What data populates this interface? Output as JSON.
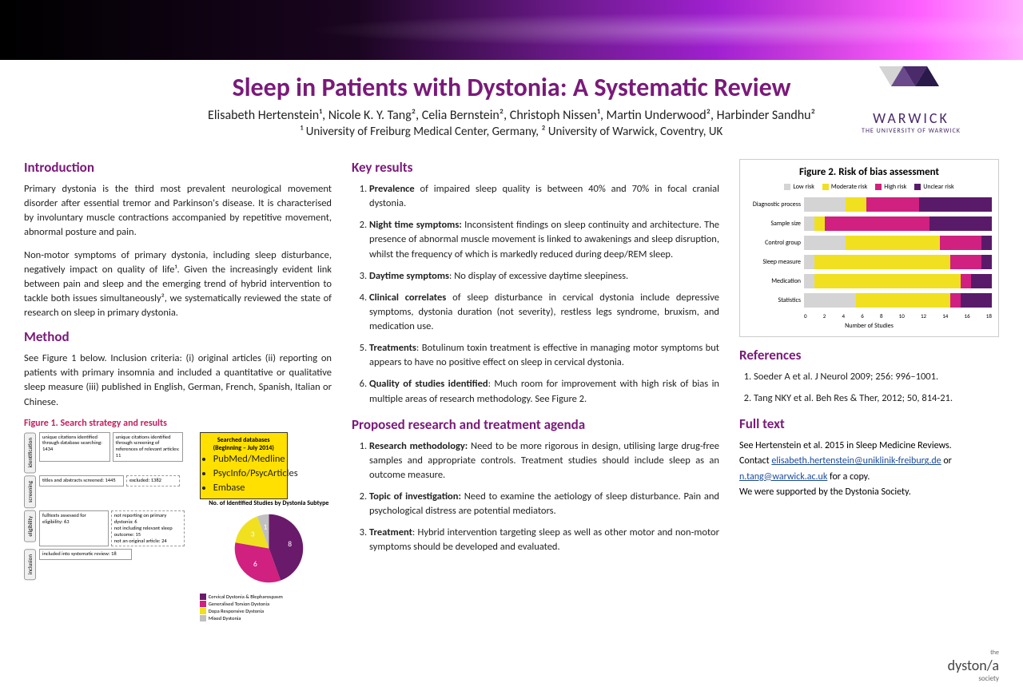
{
  "title": "Sleep in Patients with Dystonia: A Systematic Review",
  "authors": "Elisabeth Hertenstein¹, Nicole K. Y. Tang², Celia Bernstein², Christoph Nissen¹, Martin Underwood², Harbinder Sandhu²",
  "affiliations": "¹ University of Freiburg Medical Center, Germany, ² University of Warwick, Coventry, UK",
  "warwick": {
    "name": "WARWICK",
    "sub": "THE UNIVERSITY OF WARWICK"
  },
  "intro": {
    "h": "Introduction",
    "p1": "Primary dystonia is the third most prevalent neurological movement disorder after essential tremor and Parkinson's disease. It is characterised by involuntary muscle contractions accompanied by repetitive movement, abnormal posture and pain.",
    "p2": "Non-motor symptoms of primary dystonia, including sleep disturbance, negatively impact on quality of life¹. Given the increasingly evident link between pain and sleep and the emerging trend of hybrid intervention to tackle both issues simultaneously², we systematically reviewed the state of research on sleep in primary dystonia."
  },
  "method": {
    "h": "Method",
    "p": "See Figure 1 below. Inclusion criteria: (i) original articles (ii) reporting on patients with primary insomnia and included a quantitative or qualitative sleep measure (iii) published in English, German, French, Spanish, Italian or Chinese."
  },
  "fig1": {
    "title": "Figure 1. Search strategy and results",
    "stages": [
      "identification",
      "screening",
      "eligibility",
      "inclusion"
    ],
    "boxes": {
      "db1": "unique citations identified through database searching: 1434",
      "db2": "unique citations identified through screening of references of relevant articles: 11",
      "screen": "titles and abstracts screened: 1445",
      "excluded": "excluded: 1382",
      "fulltext": "fulltexts assessed for eligibility: 63",
      "notrep": "not reporting on primary dystonia: 6\nnot including relevant sleep outcome: 15\nnot an original article: 24",
      "included": "included into systematic review: 18"
    },
    "dbtitle": "Searched databases (Beginning – July 2014)",
    "dblist": [
      "PubMed/Medline",
      "PsycInfo/PsycArticles",
      "Embase"
    ],
    "pietitle": "No. of Identified Studies by Dystonia Subtype",
    "pie": [
      {
        "label": "Cervical Dystonia & Blepharospasm",
        "value": 8,
        "color": "#6a1a6a"
      },
      {
        "label": "Generalised Torsion Dystonia",
        "value": 6,
        "color": "#d02080"
      },
      {
        "label": "Dopa Responsive Dystonia",
        "value": 3,
        "color": "#f0e020"
      },
      {
        "label": "Mixed Dystonia",
        "value": 1,
        "color": "#c0c0c0"
      }
    ]
  },
  "keyresults": {
    "h": "Key results",
    "items": [
      {
        "b": "Prevalence",
        "t": " of impaired sleep quality is between 40% and 70% in focal cranial dystonia."
      },
      {
        "b": "Night time symptoms:",
        "t": " Inconsistent findings on sleep continuity and architecture. The presence of abnormal muscle movement is linked to awakenings and sleep disruption, whilst the frequency of which is markedly reduced during deep/REM sleep."
      },
      {
        "b": "Daytime symptoms",
        "t": ": No display of excessive daytime sleepiness."
      },
      {
        "b": "Clinical correlates",
        "t": " of sleep disturbance in cervical dystonia include depressive symptoms, dystonia duration (not severity), restless legs syndrome, bruxism, and medication use."
      },
      {
        "b": "Treatments",
        "t": ": Botulinum toxin treatment is effective in managing motor symptoms but appears to have no positive effect on sleep in cervical dystonia."
      },
      {
        "b": "Quality of studies identified",
        "t": ": Much room for improvement with high risk of bias in multiple areas of research methodology. See Figure 2."
      }
    ]
  },
  "agenda": {
    "h": "Proposed research and treatment agenda",
    "items": [
      {
        "b": "Research methodology:",
        "t": " Need to be more rigorous in design, utilising large drug-free samples and appropriate controls. Treatment studies should include sleep as an outcome measure."
      },
      {
        "b": "Topic of investigation:",
        "t": " Need to examine the aetiology of sleep disturbance. Pain and psychological distress are potential mediators."
      },
      {
        "b": "Treatment",
        "t": ": Hybrid intervention targeting sleep as well as other motor and non-motor symptoms should be developed and evaluated."
      }
    ]
  },
  "fig2": {
    "title": "Figure 2. Risk of bias assessment",
    "legend": [
      {
        "label": "Low risk",
        "color": "#d4d4d4"
      },
      {
        "label": "Moderate risk",
        "color": "#f0e020"
      },
      {
        "label": "High risk",
        "color": "#d02080"
      },
      {
        "label": "Unclear risk",
        "color": "#5a1a6a"
      }
    ],
    "max": 18,
    "rows": [
      {
        "label": "Diagnostic process",
        "seg": [
          4,
          2,
          5,
          7
        ]
      },
      {
        "label": "Sample size",
        "seg": [
          1,
          1,
          10,
          6
        ]
      },
      {
        "label": "Control group",
        "seg": [
          4,
          9,
          4,
          1
        ]
      },
      {
        "label": "Sleep measure",
        "seg": [
          1,
          13,
          3,
          1
        ]
      },
      {
        "label": "Medication",
        "seg": [
          1,
          14,
          1,
          2
        ]
      },
      {
        "label": "Statistics",
        "seg": [
          5,
          9,
          1,
          3
        ]
      }
    ],
    "ticks": [
      "0",
      "2",
      "4",
      "6",
      "8",
      "10",
      "12",
      "14",
      "16",
      "18"
    ],
    "xlabel": "Number of Studies"
  },
  "refs": {
    "h": "References",
    "items": [
      "Soeder A et al. J Neurol 2009; 256: 996–1001.",
      "Tang NKY et al. Beh Res & Ther, 2012; 50, 814-21."
    ]
  },
  "fulltext": {
    "h": "Full text",
    "p1": "See Hertenstein et al. 2015  in Sleep Medicine Reviews.",
    "contact_pre": "Contact ",
    "email1": "elisabeth.hertenstein@uniklinik-freiburg.de",
    "or": " or ",
    "email2": "n.tang@warwick.ac.uk",
    "post": " for a copy.",
    "support": "We were supported by the Dystonia Society."
  },
  "society": {
    "the": "the",
    "brand": "dyston/a",
    "sub": "society"
  }
}
